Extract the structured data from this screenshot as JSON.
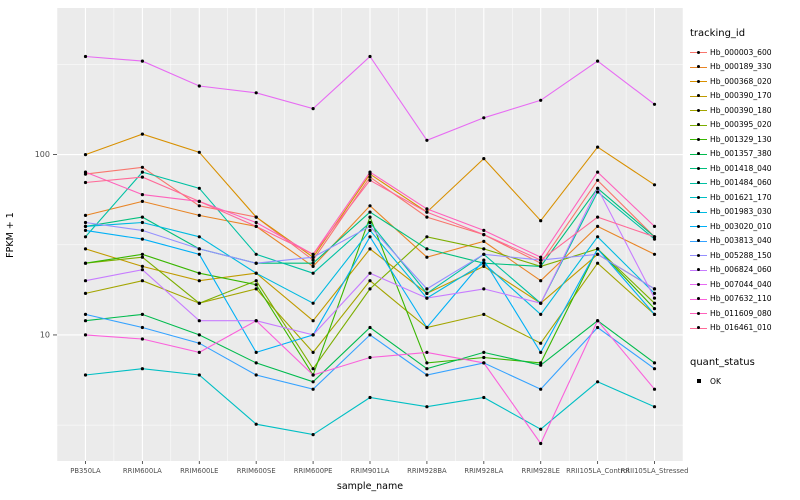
{
  "figure": {
    "background": "#FFFFFF",
    "panel_background": "#EBEBEB",
    "grid_major_color": "#FFFFFF",
    "grid_minor_color": "#F7F7F7",
    "tick_label_color": "#4D4D4D",
    "point_color": "#000000"
  },
  "axes": {
    "x_title": "sample_name",
    "y_title": "FPKM + 1",
    "y_scale": "log10",
    "y_ticks": [
      {
        "label": "10",
        "value": 10
      },
      {
        "label": "100",
        "value": 100
      }
    ],
    "y_minor": [
      3.162,
      31.62,
      316.2
    ],
    "y_domain": [
      2,
      650
    ]
  },
  "legend": {
    "tracking_title": "tracking_id",
    "quant_title": "quant_status",
    "quant_items": [
      {
        "label": "OK",
        "marker": "black-square"
      }
    ]
  },
  "chart_data": {
    "type": "line",
    "title": "",
    "xlabel": "sample_name",
    "ylabel": "FPKM + 1",
    "y_axis": "log10",
    "ylim": [
      2,
      650
    ],
    "grid": true,
    "legend_position": "right",
    "categories": [
      "PB350LA",
      "RRIM600LA",
      "RRIM600LE",
      "RRIM600SE",
      "RRIM600PE",
      "RRIM901LA",
      "RRIM928BA",
      "RRIM928LA",
      "RRIM928LE",
      "RRII105LA_Control",
      "RRII105LA_Stressed"
    ],
    "series": [
      {
        "name": "Hb_000003_600",
        "color": "#F8766D",
        "values": [
          78,
          85,
          52,
          45,
          26,
          75,
          45,
          36,
          25,
          72,
          35
        ]
      },
      {
        "name": "Hb_000189_330",
        "color": "#E88526",
        "values": [
          46,
          55,
          46,
          40,
          24,
          52,
          27,
          33,
          20,
          40,
          28
        ]
      },
      {
        "name": "Hb_000368_020",
        "color": "#D89000",
        "values": [
          100,
          130,
          103,
          45,
          27,
          78,
          48,
          95,
          43,
          110,
          68
        ]
      },
      {
        "name": "Hb_000390_170",
        "color": "#C09B00",
        "values": [
          30,
          24,
          20,
          22,
          12,
          30,
          17,
          24,
          15,
          28,
          18
        ]
      },
      {
        "name": "Hb_000390_180",
        "color": "#A3A500",
        "values": [
          17,
          20,
          15,
          18,
          8,
          20,
          11,
          13,
          9,
          25,
          13
        ]
      },
      {
        "name": "Hb_000395_020",
        "color": "#7CAE00",
        "values": [
          25,
          27,
          15,
          20,
          6.5,
          18,
          35,
          30,
          24,
          30,
          15
        ]
      },
      {
        "name": "Hb_001329_130",
        "color": "#39B600",
        "values": [
          25,
          28,
          22,
          19,
          6,
          45,
          7,
          7.5,
          7,
          30,
          14
        ]
      },
      {
        "name": "Hb_001357_380",
        "color": "#00BB4E",
        "values": [
          12,
          13,
          10,
          7,
          5.5,
          11,
          6.5,
          8,
          6.8,
          12,
          7
        ]
      },
      {
        "name": "Hb_001418_040",
        "color": "#00BF7D",
        "values": [
          40,
          45,
          30,
          25,
          25,
          48,
          30,
          25,
          24,
          65,
          35
        ]
      },
      {
        "name": "Hb_001484_060",
        "color": "#00C1A3",
        "values": [
          35,
          80,
          65,
          28,
          22,
          42,
          17,
          28,
          15,
          62,
          34
        ]
      },
      {
        "name": "Hb_001621_170",
        "color": "#00BFC4",
        "values": [
          6,
          6.5,
          6,
          3.2,
          2.8,
          4.5,
          4,
          4.5,
          3,
          5.5,
          4
        ]
      },
      {
        "name": "Hb_001983_030",
        "color": "#00BAE0",
        "values": [
          40,
          42,
          35,
          22,
          15,
          38,
          16,
          25,
          13,
          35,
          17
        ]
      },
      {
        "name": "Hb_003020_010",
        "color": "#00B0F6",
        "values": [
          38,
          34,
          28,
          8,
          10,
          35,
          11,
          26,
          8,
          30,
          13
        ]
      },
      {
        "name": "Hb_003813_040",
        "color": "#35A2FF",
        "values": [
          13,
          11,
          9,
          6,
          5,
          10,
          6,
          7,
          5,
          11,
          6.5
        ]
      },
      {
        "name": "Hb_005288_150",
        "color": "#9590FF",
        "values": [
          42,
          38,
          30,
          25,
          27,
          40,
          18,
          28,
          26,
          28,
          18
        ]
      },
      {
        "name": "Hb_006824_060",
        "color": "#C77CFF",
        "values": [
          20,
          23,
          12,
          12,
          10,
          22,
          16,
          18,
          15,
          65,
          16
        ]
      },
      {
        "name": "Hb_007044_040",
        "color": "#E76BF3",
        "values": [
          350,
          330,
          240,
          220,
          180,
          350,
          120,
          160,
          200,
          330,
          190
        ]
      },
      {
        "name": "Hb_007632_110",
        "color": "#FA62DB",
        "values": [
          10,
          9.5,
          8,
          12,
          6,
          7.5,
          8,
          7,
          2.5,
          12,
          5
        ]
      },
      {
        "name": "Hb_011609_080",
        "color": "#FF62BC",
        "values": [
          80,
          60,
          55,
          42,
          28,
          80,
          50,
          38,
          27,
          80,
          40
        ]
      },
      {
        "name": "Hb_016461_010",
        "color": "#FF6A98",
        "values": [
          70,
          75,
          55,
          40,
          28,
          72,
          48,
          36,
          26,
          45,
          35
        ]
      }
    ]
  }
}
